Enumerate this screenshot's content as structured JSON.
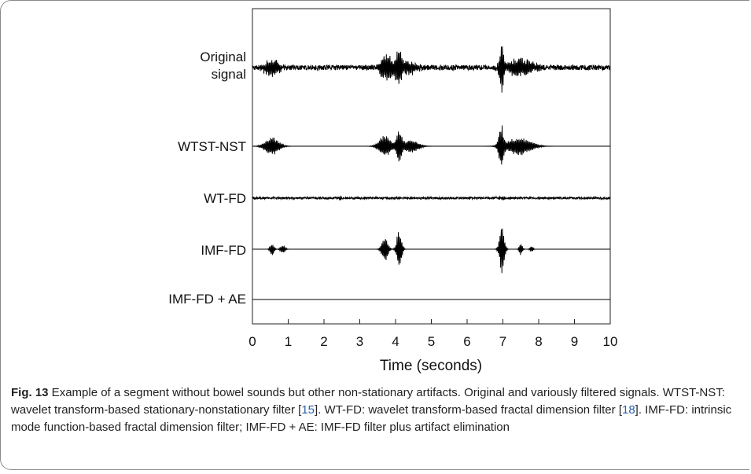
{
  "figure": {
    "caption_label": "Fig. 13",
    "caption_parts": [
      {
        "t": "  Example of a segment without bowel sounds but other non-stationary artifacts. Original and variously filtered signals. WTST-NST: wavelet transform-based stationary-nonstationary filter ["
      },
      {
        "t": "15",
        "ref": true
      },
      {
        "t": "]. WT-FD: wavelet transform-based fractal dimension filter ["
      },
      {
        "t": "18",
        "ref": true
      },
      {
        "t": "]. IMF-FD: intrinsic mode function-based fractal dimension filter; IMF-FD + AE: IMF-FD filter plus artifact elimination"
      }
    ]
  },
  "chart_data": {
    "type": "line",
    "xlabel": "Time (seconds)",
    "xlim": [
      0,
      10
    ],
    "xticks": [
      0,
      1,
      2,
      3,
      4,
      5,
      6,
      7,
      8,
      9,
      10
    ],
    "series": [
      {
        "name": "Original signal",
        "label_lines": [
          "Original",
          "signal"
        ],
        "baseline_noise": 0.12,
        "bursts": [
          {
            "t": 0.55,
            "amp": 0.45,
            "w": 0.35
          },
          {
            "t": 3.75,
            "amp": 0.7,
            "w": 0.3
          },
          {
            "t": 4.1,
            "amp": 1.0,
            "w": 0.15
          },
          {
            "t": 4.4,
            "amp": 0.35,
            "w": 0.4
          },
          {
            "t": 6.97,
            "amp": 1.4,
            "w": 0.12
          },
          {
            "t": 7.5,
            "amp": 0.5,
            "w": 0.6
          }
        ]
      },
      {
        "name": "WTST-NST",
        "label_lines": [
          "WTST-NST"
        ],
        "baseline_noise": 0.0,
        "bursts": [
          {
            "t": 0.55,
            "amp": 0.45,
            "w": 0.35
          },
          {
            "t": 3.7,
            "amp": 0.55,
            "w": 0.3
          },
          {
            "t": 4.1,
            "amp": 0.85,
            "w": 0.15
          },
          {
            "t": 4.4,
            "amp": 0.35,
            "w": 0.4
          },
          {
            "t": 6.95,
            "amp": 1.1,
            "w": 0.12
          },
          {
            "t": 7.45,
            "amp": 0.45,
            "w": 0.6
          }
        ]
      },
      {
        "name": "WT-FD",
        "label_lines": [
          "WT-FD"
        ],
        "baseline_noise": 0.05,
        "bursts": [
          {
            "t": 2.45,
            "amp": 0.08,
            "w": 0.05
          },
          {
            "t": 6.95,
            "amp": 0.06,
            "w": 0.3
          }
        ]
      },
      {
        "name": "IMF-FD",
        "label_lines": [
          "IMF-FD"
        ],
        "baseline_noise": 0.0,
        "bursts": [
          {
            "t": 0.55,
            "amp": 0.3,
            "w": 0.1
          },
          {
            "t": 0.85,
            "amp": 0.2,
            "w": 0.12
          },
          {
            "t": 3.7,
            "amp": 0.65,
            "w": 0.15
          },
          {
            "t": 4.1,
            "amp": 1.0,
            "w": 0.12
          },
          {
            "t": 6.97,
            "amp": 1.2,
            "w": 0.12
          },
          {
            "t": 7.5,
            "amp": 0.3,
            "w": 0.08
          },
          {
            "t": 7.8,
            "amp": 0.15,
            "w": 0.08
          }
        ]
      },
      {
        "name": "IMF-FD + AE",
        "label_lines": [
          "IMF-FD + AE"
        ],
        "baseline_noise": 0.0,
        "bursts": []
      }
    ]
  }
}
